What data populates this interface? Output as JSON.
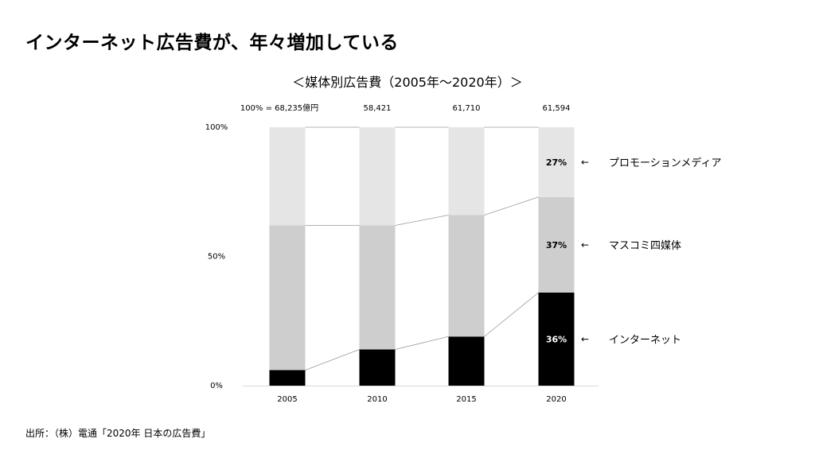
{
  "slide_title": "インターネット広告費が、年々増加している",
  "source": "出所：（株）電通「2020年 日本の広告費」",
  "chart_data": {
    "type": "bar",
    "stacked": true,
    "normalized": true,
    "title": "＜媒体別広告費（2005年〜2020年）＞",
    "categories": [
      "2005",
      "2010",
      "2015",
      "2020"
    ],
    "totals": [
      "100% = 68,235億円",
      "58,421",
      "61,710",
      "61,594"
    ],
    "y_ticks": [
      "100%",
      "50%",
      "0%"
    ],
    "ylim": [
      0,
      100
    ],
    "series": [
      {
        "name": "インターネット",
        "values": [
          6,
          14,
          19,
          36
        ],
        "color": "#000000"
      },
      {
        "name": "マスコミ四媒体",
        "values": [
          56,
          48,
          47,
          37
        ],
        "color": "#cfcecf"
      },
      {
        "name": "プロモーションメディア",
        "values": [
          38,
          38,
          34,
          27
        ],
        "color": "#e6e5e6"
      }
    ],
    "data_labels_2020": [
      "36%",
      "37%",
      "27%"
    ],
    "legend_placement": "right",
    "legend_arrow": "←",
    "connector_lines": true
  }
}
